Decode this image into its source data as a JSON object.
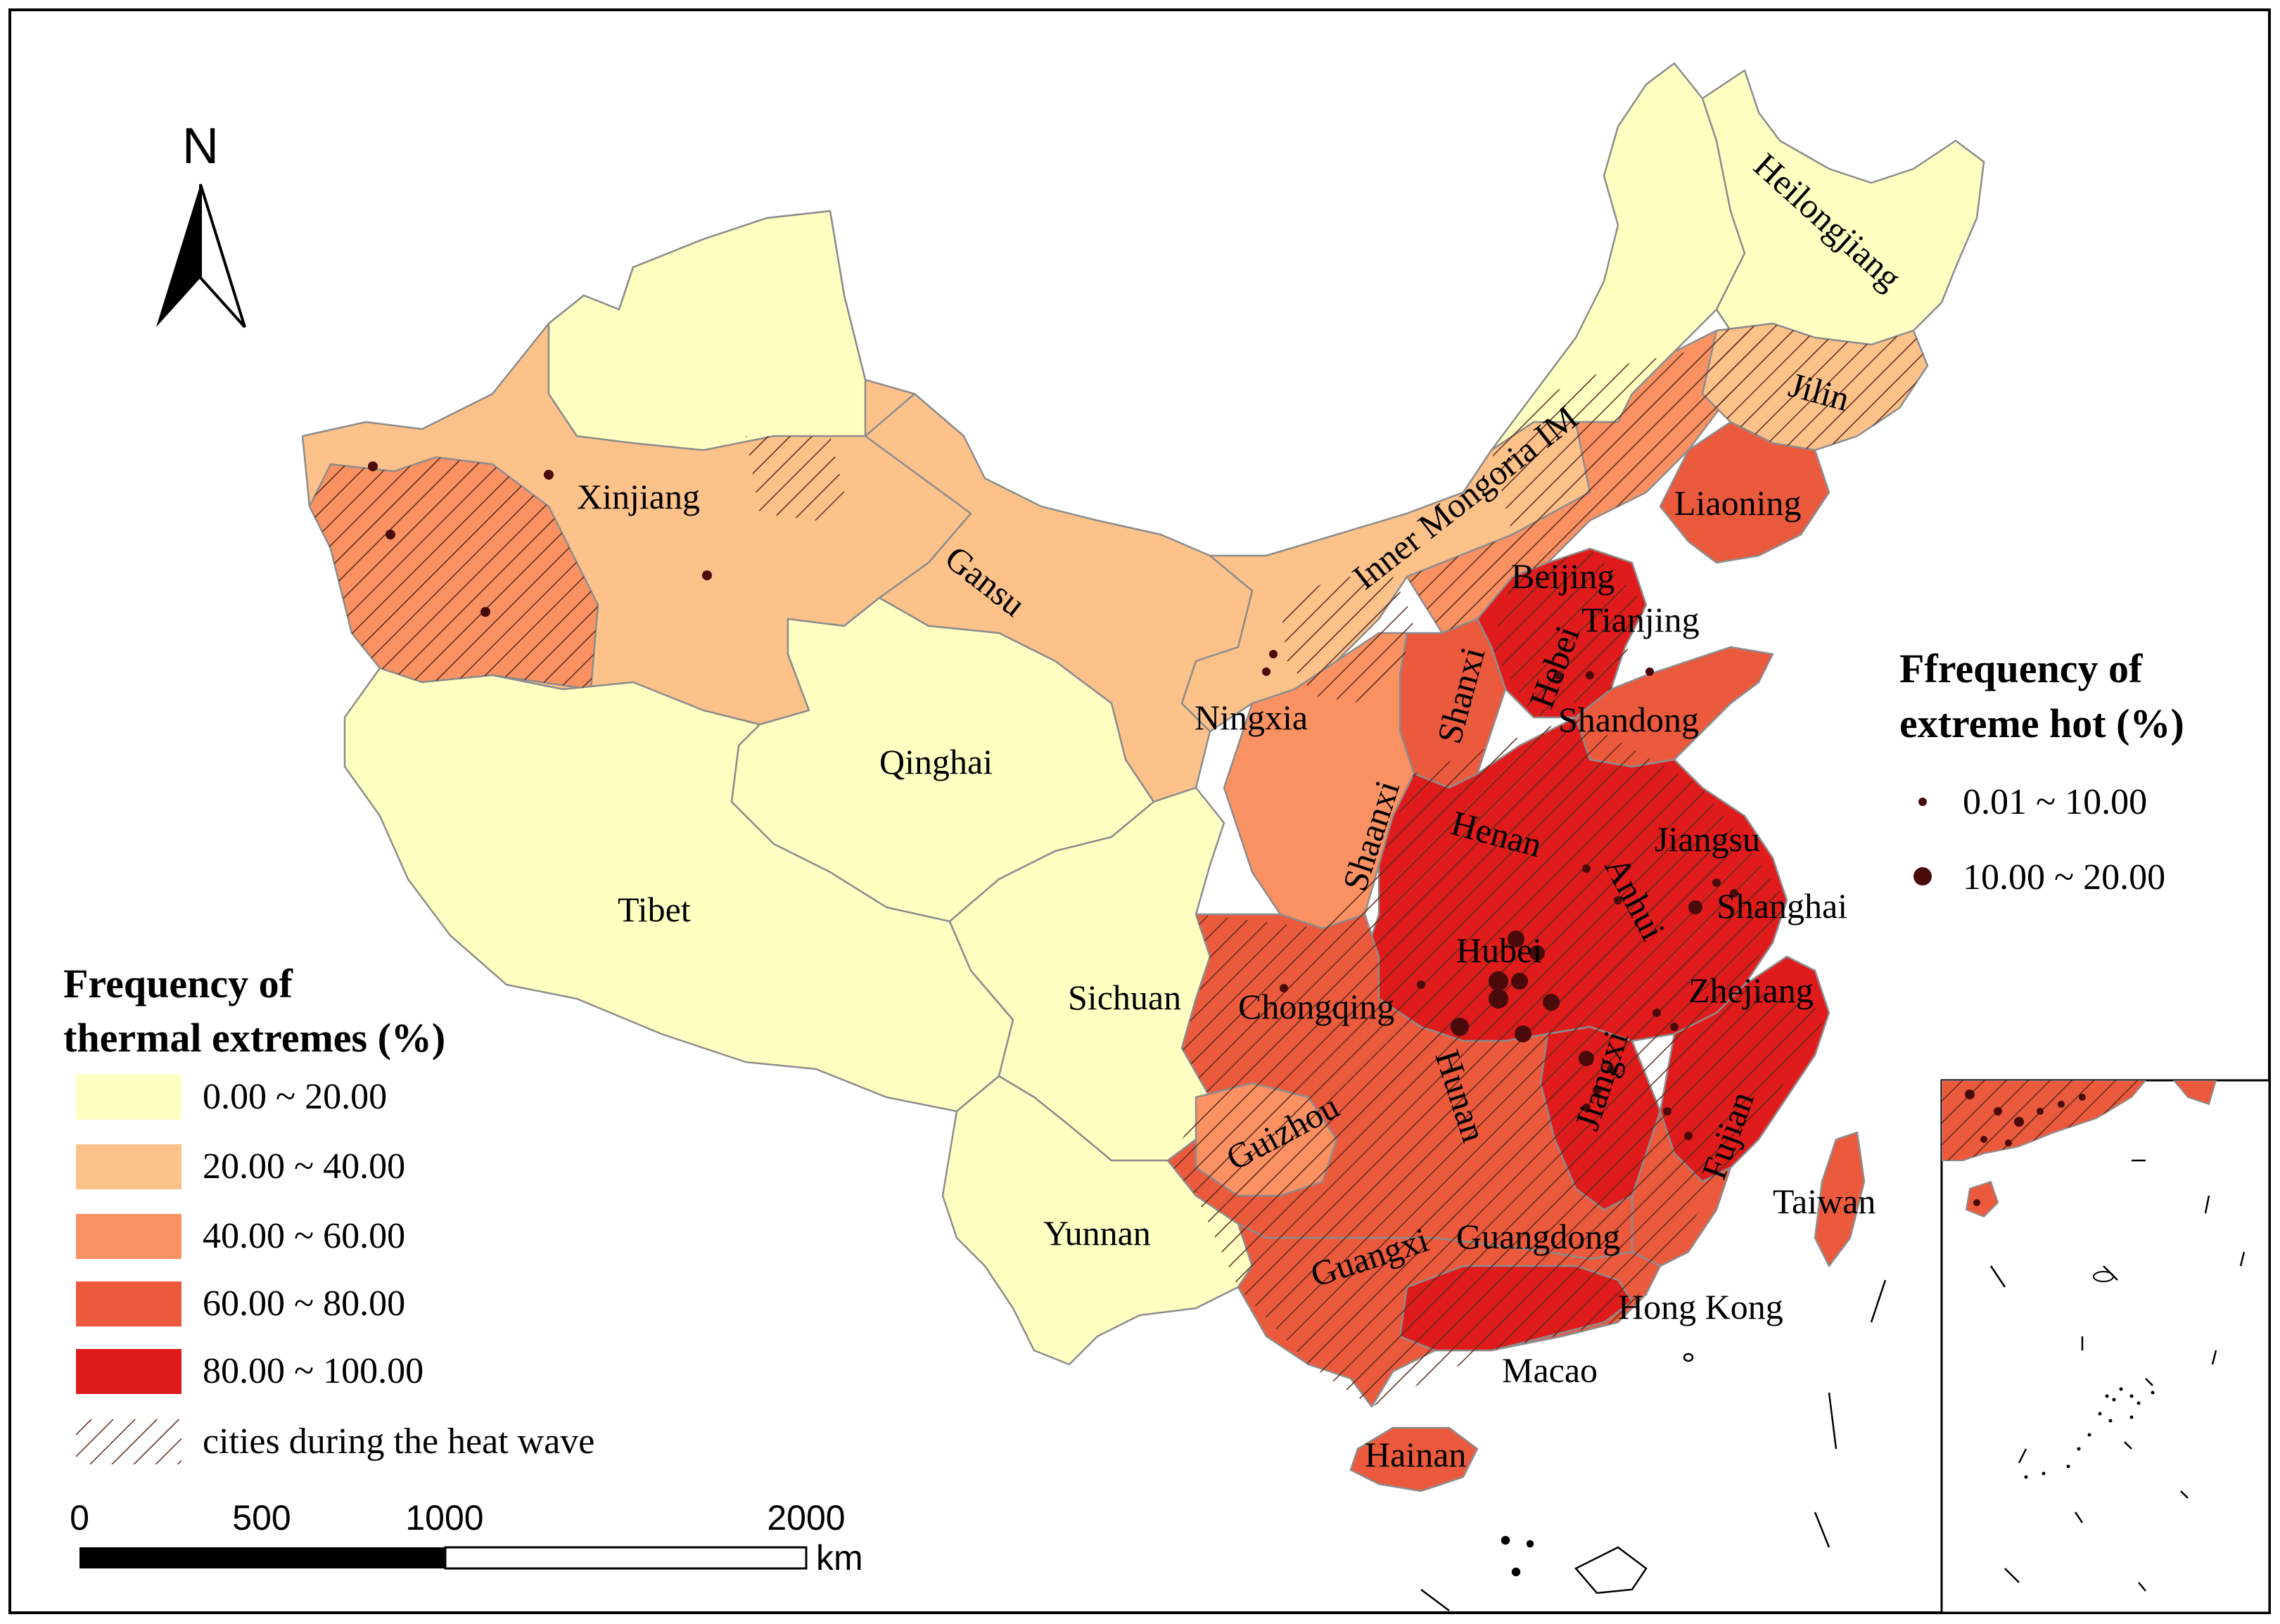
{
  "north_arrow": {
    "label": "N"
  },
  "provinces": [
    {
      "id": "xinjiang",
      "label": "Xinjiang"
    },
    {
      "id": "gansu",
      "label": "Gansu"
    },
    {
      "id": "qinghai",
      "label": "Qinghai"
    },
    {
      "id": "tibet",
      "label": "Tibet"
    },
    {
      "id": "sichuan",
      "label": "Sichuan"
    },
    {
      "id": "yunnan",
      "label": "Yunnan"
    },
    {
      "id": "ningxia",
      "label": "Ningxia"
    },
    {
      "id": "inner-mongolia",
      "label": "Inner Mongoria IM"
    },
    {
      "id": "heilongjiang",
      "label": "Heilongjiang"
    },
    {
      "id": "jilin",
      "label": "Jilin"
    },
    {
      "id": "liaoning",
      "label": "Liaoning"
    },
    {
      "id": "beijing",
      "label": "Beijing"
    },
    {
      "id": "tianjing",
      "label": "Tianjing"
    },
    {
      "id": "hebei",
      "label": "Hebei"
    },
    {
      "id": "shanxi",
      "label": "Shanxi"
    },
    {
      "id": "shandong",
      "label": "Shandong"
    },
    {
      "id": "shaanxi",
      "label": "Shaanxi"
    },
    {
      "id": "henan",
      "label": "Henan"
    },
    {
      "id": "jiangsu",
      "label": "Jiangsu"
    },
    {
      "id": "anhui",
      "label": "Anhui"
    },
    {
      "id": "shanghai",
      "label": "Shanghai"
    },
    {
      "id": "hubei",
      "label": "Hubei"
    },
    {
      "id": "chongqing",
      "label": "Chongqing"
    },
    {
      "id": "zhejiang",
      "label": "Zhejiang"
    },
    {
      "id": "jiangxi",
      "label": "Jiangxi"
    },
    {
      "id": "hunan",
      "label": "Hunan"
    },
    {
      "id": "guizhou",
      "label": "Guizhou"
    },
    {
      "id": "fujian",
      "label": "Fujian"
    },
    {
      "id": "taiwan",
      "label": "Taiwan"
    },
    {
      "id": "guangxi",
      "label": "Guangxi"
    },
    {
      "id": "guangdong",
      "label": "Guangdong"
    },
    {
      "id": "hong-kong",
      "label": "Hong Kong"
    },
    {
      "id": "macao",
      "label": "Macao"
    },
    {
      "id": "hainan",
      "label": "Hainan"
    }
  ],
  "legend_thermal": {
    "title_line1": "Frequency of",
    "title_line2": "thermal extremes (%)",
    "classes": [
      {
        "label": "0.00 ~ 20.00",
        "color": "#ffffc2"
      },
      {
        "label": "20.00 ~ 40.00",
        "color": "#fdc18a"
      },
      {
        "label": "40.00 ~ 60.00",
        "color": "#fa9163"
      },
      {
        "label": "60.00 ~ 80.00",
        "color": "#ec5a3e"
      },
      {
        "label": "80.00 ~ 100.00",
        "color": "#e01b1c"
      }
    ],
    "hatch_label": "cities during the heat wave"
  },
  "legend_hot": {
    "title_line1": "Ffrequency of",
    "title_line2": "extreme hot (%)",
    "classes": [
      {
        "label": "0.01 ~ 10.00",
        "color": "#4a0a0a"
      },
      {
        "label": "10.00 ~ 20.00",
        "color": "#4a0a0a"
      }
    ]
  },
  "scale_bar": {
    "ticks": [
      "0",
      "500",
      "1000",
      "2000"
    ],
    "unit": "km"
  }
}
